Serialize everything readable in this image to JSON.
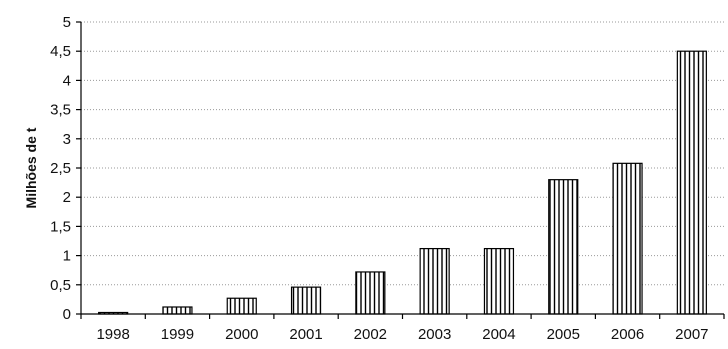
{
  "chart_data": {
    "type": "bar",
    "title": "",
    "xlabel": "",
    "ylabel": "Milhões de t",
    "categories": [
      "1998",
      "1999",
      "2000",
      "2001",
      "2002",
      "2003",
      "2004",
      "2005",
      "2006",
      "2007"
    ],
    "values": [
      0.02,
      0.12,
      0.27,
      0.46,
      0.72,
      1.12,
      1.12,
      2.3,
      2.58,
      4.5
    ],
    "ylim": [
      0,
      5
    ],
    "yticks": [
      0,
      0.5,
      1,
      1.5,
      2,
      2.5,
      3,
      3.5,
      4,
      4.5,
      5
    ],
    "ytick_labels": [
      "0",
      "0,5",
      "1",
      "1,5",
      "2",
      "2,5",
      "3",
      "3,5",
      "4",
      "4,5",
      "5"
    ],
    "grid": true,
    "bar_fill": "vertical-hatch",
    "bar_color": "#000000"
  }
}
